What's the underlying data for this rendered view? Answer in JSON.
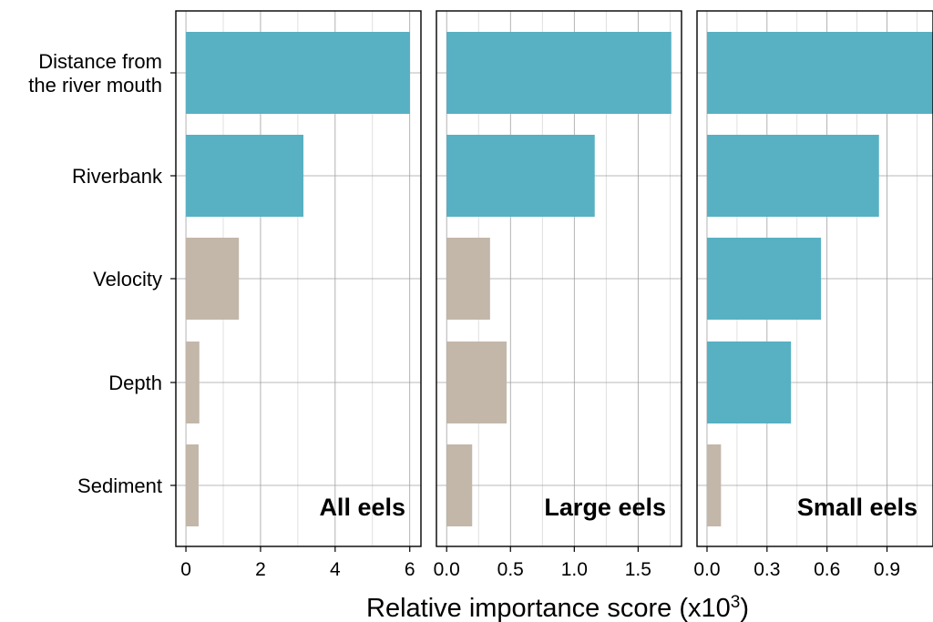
{
  "chart_data": {
    "type": "bar",
    "orientation": "horizontal",
    "categories": [
      "Distance from the river mouth",
      "Riverbank",
      "Velocity",
      "Depth",
      "Sediment"
    ],
    "category_label_lines": [
      [
        "Distance from",
        "the river mouth"
      ],
      [
        "Riverbank"
      ],
      [
        "Velocity"
      ],
      [
        "Depth"
      ],
      [
        "Sediment"
      ]
    ],
    "xlabel": "Relative importance score (x10",
    "xlabel_superscript": "3",
    "xlabel_suffix": ")",
    "grid": true,
    "colors": {
      "highlighted": "#58b0c3",
      "other": "#c3b7aa",
      "grid": "#a0a0a0"
    },
    "panels": [
      {
        "label": "All eels",
        "values": [
          6.0,
          3.15,
          1.42,
          0.36,
          0.34
        ],
        "highlighted": [
          true,
          true,
          false,
          false,
          false
        ],
        "xlim": [
          -0.27,
          6.3
        ],
        "ticks": [
          0,
          2,
          4,
          6
        ],
        "tick_labels": [
          "0",
          "2",
          "4",
          "6"
        ],
        "minor_ticks": [
          1,
          3,
          5
        ]
      },
      {
        "label": "Large eels",
        "values": [
          1.76,
          1.16,
          0.34,
          0.47,
          0.2
        ],
        "highlighted": [
          true,
          true,
          false,
          false,
          false
        ],
        "xlim": [
          -0.08,
          1.84
        ],
        "ticks": [
          0,
          0.5,
          1.0,
          1.5
        ],
        "tick_labels": [
          "0.0",
          "0.5",
          "1.0",
          "1.5"
        ],
        "minor_ticks": [
          0.25,
          0.75,
          1.25,
          1.75
        ]
      },
      {
        "label": "Small eels",
        "values": [
          1.13,
          0.86,
          0.57,
          0.42,
          0.07
        ],
        "highlighted": [
          true,
          true,
          true,
          true,
          false
        ],
        "xlim": [
          -0.05,
          1.13
        ],
        "ticks": [
          0,
          0.3,
          0.6,
          0.9
        ],
        "tick_labels": [
          "0.0",
          "0.3",
          "0.6",
          "0.9"
        ],
        "minor_ticks": [
          0.15,
          0.45,
          0.75,
          1.05
        ]
      }
    ]
  }
}
